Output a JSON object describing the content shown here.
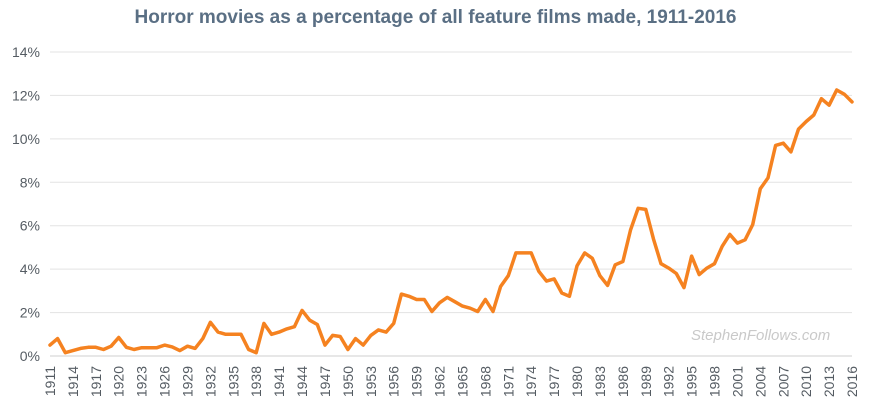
{
  "chart_data": {
    "type": "line",
    "title": "Horror movies as a percentage of all feature films made, 1911-2016",
    "xlabel": "",
    "ylabel": "",
    "ylim": [
      0,
      14
    ],
    "yticks": [
      "0%",
      "2%",
      "4%",
      "6%",
      "8%",
      "10%",
      "12%",
      "14%"
    ],
    "ytick_values": [
      0,
      2,
      4,
      6,
      8,
      10,
      12,
      14
    ],
    "xlim": [
      1911,
      2016
    ],
    "xticks": [
      1911,
      1914,
      1917,
      1920,
      1923,
      1926,
      1929,
      1932,
      1935,
      1938,
      1941,
      1944,
      1947,
      1950,
      1953,
      1956,
      1959,
      1962,
      1965,
      1968,
      1971,
      1974,
      1977,
      1980,
      1983,
      1986,
      1989,
      1992,
      1995,
      1998,
      2001,
      2004,
      2007,
      2010,
      2013,
      2016
    ],
    "grid": true,
    "line_color": "#f58220",
    "series": [
      {
        "x": [
          1911,
          1912,
          1913,
          1914,
          1915,
          1916,
          1917,
          1918,
          1919,
          1920,
          1921,
          1922,
          1923,
          1924,
          1925,
          1926,
          1927,
          1928,
          1929,
          1930,
          1931,
          1932,
          1933,
          1934,
          1935,
          1936,
          1937,
          1938,
          1939,
          1940,
          1941,
          1942,
          1943,
          1944,
          1945,
          1946,
          1947,
          1948,
          1949,
          1950,
          1951,
          1952,
          1953,
          1954,
          1955,
          1956,
          1957,
          1958,
          1959,
          1960,
          1961,
          1962,
          1963,
          1964,
          1965,
          1966,
          1967,
          1968,
          1969,
          1970,
          1971,
          1972,
          1973,
          1974,
          1975,
          1976,
          1977,
          1978,
          1979,
          1980,
          1981,
          1982,
          1983,
          1984,
          1985,
          1986,
          1987,
          1988,
          1989,
          1990,
          1991,
          1992,
          1993,
          1994,
          1995,
          1996,
          1997,
          1998,
          1999,
          2000,
          2001,
          2002,
          2003,
          2004,
          2005,
          2006,
          2007,
          2008,
          2009,
          2010,
          2011,
          2012,
          2013,
          2014,
          2015,
          2016
        ],
        "values": [
          0.5,
          0.8,
          0.15,
          0.25,
          0.35,
          0.4,
          0.4,
          0.3,
          0.45,
          0.85,
          0.4,
          0.3,
          0.38,
          0.38,
          0.38,
          0.5,
          0.42,
          0.25,
          0.45,
          0.35,
          0.8,
          1.55,
          1.1,
          1.0,
          1.0,
          1.0,
          0.3,
          0.15,
          1.5,
          1.0,
          1.1,
          1.25,
          1.35,
          2.1,
          1.65,
          1.45,
          0.5,
          0.95,
          0.9,
          0.3,
          0.8,
          0.5,
          0.95,
          1.2,
          1.1,
          1.5,
          2.85,
          2.75,
          2.6,
          2.6,
          2.05,
          2.45,
          2.7,
          2.5,
          2.3,
          2.2,
          2.05,
          2.6,
          2.05,
          3.2,
          3.7,
          4.75,
          4.75,
          4.75,
          3.9,
          3.45,
          3.55,
          2.9,
          2.75,
          4.15,
          4.75,
          4.5,
          3.7,
          3.25,
          4.2,
          4.35,
          5.8,
          6.8,
          6.75,
          5.4,
          4.25,
          4.05,
          3.8,
          3.15,
          4.6,
          3.75,
          4.05,
          4.25,
          5.05,
          5.6,
          5.2,
          5.35,
          6.05,
          7.7,
          8.2,
          9.7,
          9.8,
          9.4,
          10.45,
          10.8,
          11.1,
          11.85,
          11.55,
          12.25,
          12.05,
          11.7
        ]
      }
    ]
  },
  "watermark": "StephenFollows.com"
}
